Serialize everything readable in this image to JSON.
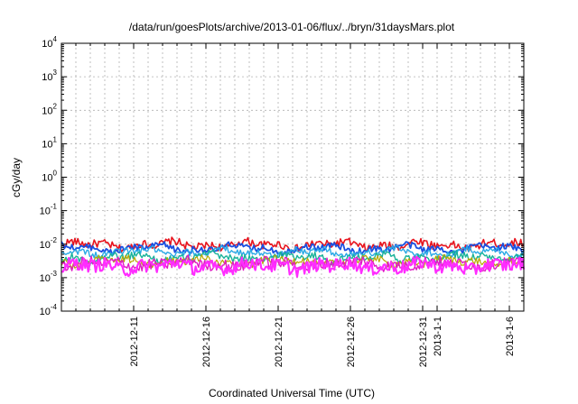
{
  "chart_data": {
    "type": "line",
    "title": "/data/run/goesPlots/archive/2013-01-06/flux/../bryn/31daysMars.plot",
    "xlabel": "Coordinated Universal Time (UTC)",
    "ylabel": "cGy/day",
    "yscale": "log",
    "ylim": [
      0.0001,
      10000
    ],
    "xlim": [
      "2012-12-06",
      "2013-01-06"
    ],
    "grid": true,
    "y_ticks": [
      {
        "base": "10",
        "exp": "4"
      },
      {
        "base": "10",
        "exp": "3"
      },
      {
        "base": "10",
        "exp": "2"
      },
      {
        "base": "10",
        "exp": "1"
      },
      {
        "base": "10",
        "exp": "0"
      },
      {
        "base": "10",
        "exp": "-1"
      },
      {
        "base": "10",
        "exp": "-2"
      },
      {
        "base": "10",
        "exp": "-3"
      },
      {
        "base": "10",
        "exp": "-4"
      }
    ],
    "x_ticks": [
      {
        "date": "2012-12-11",
        "label": "2012-12-11"
      },
      {
        "date": "2012-12-16",
        "label": "2012-12-16"
      },
      {
        "date": "2012-12-21",
        "label": "2012-12-21"
      },
      {
        "date": "2012-12-26",
        "label": "2012-12-26"
      },
      {
        "date": "2012-12-31",
        "label": "2012-12-31"
      },
      {
        "date": "2013-01-01",
        "label": "2013-1-1"
      },
      {
        "date": "2013-01-06",
        "label": "2013-1-6"
      }
    ],
    "series": [
      {
        "color": "#e8141e",
        "level": 0.0095,
        "noise": 0.12,
        "width": 1.6
      },
      {
        "color": "#1a4fe0",
        "level": 0.0075,
        "noise": 0.1,
        "width": 1.8
      },
      {
        "color": "#2aa9e6",
        "level": 0.0058,
        "noise": 0.1,
        "width": 1.4
      },
      {
        "color": "#19b39a",
        "level": 0.004,
        "noise": 0.12,
        "width": 1.4
      },
      {
        "color": "#b8a800",
        "level": 0.003,
        "noise": 0.12,
        "width": 1.2
      },
      {
        "color": "#e01cc4",
        "level": 0.0026,
        "noise": 0.16,
        "width": 1.4
      },
      {
        "color": "#ff2cff",
        "level": 0.0022,
        "noise": 0.2,
        "width": 2.2
      }
    ]
  }
}
